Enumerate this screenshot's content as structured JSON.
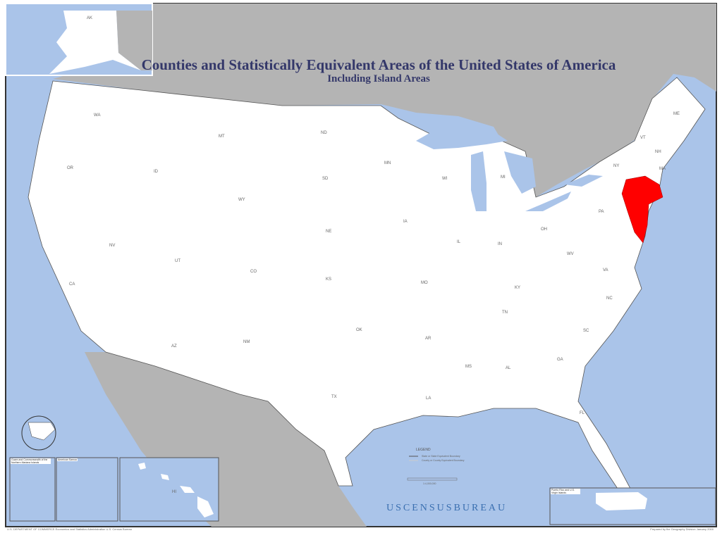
{
  "title": "Counties and Statistically Equivalent Areas of the United States of America",
  "subtitle": "Including Island Areas",
  "highlight_color": "#ff0000",
  "colors": {
    "ocean": "#aac4e9",
    "foreign_land": "#b4b4b4",
    "us_land": "#ffffff"
  },
  "highlighted_region": "New York metropolitan area counties (NY / NJ / CT)",
  "state_labels": [
    "AK",
    "WA",
    "OR",
    "CA",
    "NV",
    "ID",
    "MT",
    "WY",
    "UT",
    "AZ",
    "CO",
    "NM",
    "ND",
    "SD",
    "NE",
    "KS",
    "OK",
    "TX",
    "MN",
    "IA",
    "MO",
    "AR",
    "LA",
    "WI",
    "IL",
    "MS",
    "MI",
    "IN",
    "KY",
    "TN",
    "AL",
    "GA",
    "FL",
    "SC",
    "NC",
    "VA",
    "WV",
    "OH",
    "PA",
    "NY",
    "VT",
    "NH",
    "ME",
    "MA",
    "HI"
  ],
  "legend": {
    "title": "LEGEND",
    "items": [
      "State or State Equivalent Boundary",
      "County or County Equivalent Boundary"
    ],
    "scale": "1:4,000,000"
  },
  "insets": {
    "guam": "Guam and Commonwealth of the Northern Mariana Islands",
    "samoa": "American Samoa",
    "pr": "Puerto Rico and U.S. Virgin Islands"
  },
  "logo": "USCENSUSBUREAU",
  "footer_left": "U.S. DEPARTMENT OF COMMERCE Economics and Statistics Administration U.S. Census Bureau",
  "footer_right": "Prepared by the Geography Division January 2000"
}
